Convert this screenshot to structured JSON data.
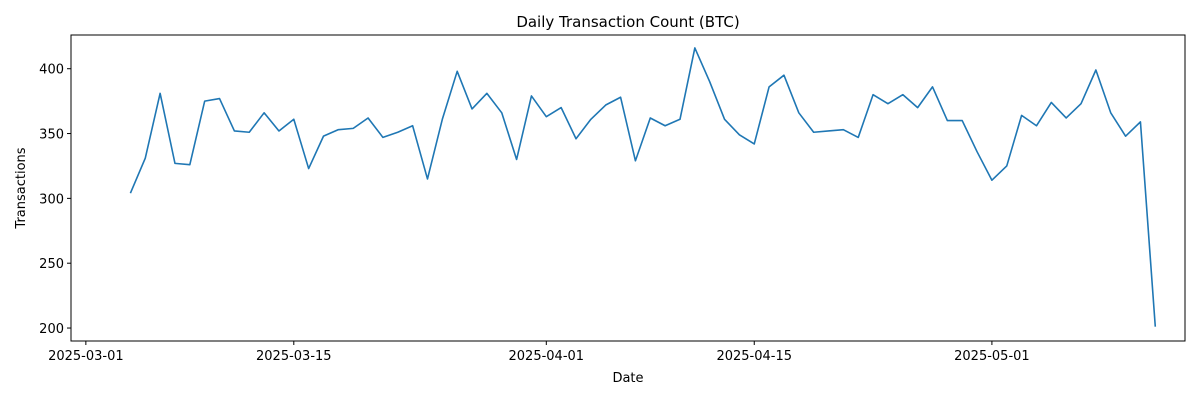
{
  "chart_data": {
    "type": "line",
    "title": "Daily Transaction Count (BTC)",
    "xlabel": "Date",
    "ylabel": "Transactions",
    "x_start": "2025-03-04",
    "x_range": [
      "2025-02-28",
      "2025-05-14"
    ],
    "x_ticks": [
      "2025-03-01",
      "2025-03-15",
      "2025-04-01",
      "2025-04-15",
      "2025-05-01"
    ],
    "ylim": [
      190,
      426
    ],
    "y_ticks": [
      200,
      250,
      300,
      350,
      400
    ],
    "grid": false,
    "line_color": "#1f77b4",
    "series": [
      {
        "values": [
          304,
          331,
          381,
          327,
          326,
          375,
          377,
          352,
          351,
          366,
          352,
          361,
          323,
          348,
          353,
          354,
          362,
          347,
          351,
          356,
          315,
          361,
          398,
          369,
          381,
          366,
          330,
          379,
          363,
          370,
          346,
          361,
          372,
          378,
          329,
          362,
          356,
          361,
          416,
          390,
          361,
          349,
          342,
          386,
          395,
          366,
          351,
          352,
          353,
          347,
          380,
          373,
          380,
          370,
          386,
          360,
          360,
          336,
          314,
          325,
          364,
          356,
          374,
          362,
          373,
          399,
          366,
          348,
          359,
          201
        ]
      }
    ]
  }
}
